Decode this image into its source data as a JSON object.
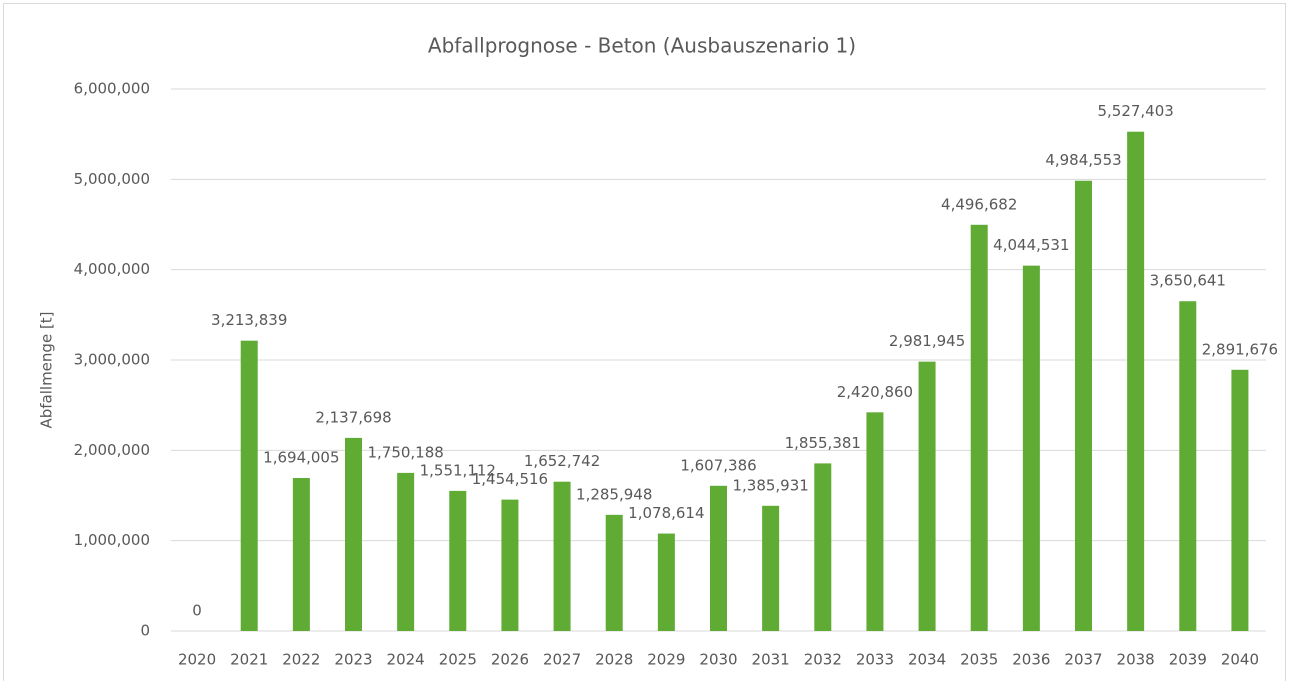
{
  "chart_data": {
    "type": "bar",
    "title": "Abfallprognose - Beton (Ausbauszenario 1)",
    "y_label": "Abfallmenge [t]",
    "categories": [
      "2020",
      "2021",
      "2022",
      "2023",
      "2024",
      "2025",
      "2026",
      "2027",
      "2028",
      "2029",
      "2030",
      "2031",
      "2032",
      "2033",
      "2034",
      "2035",
      "2036",
      "2037",
      "2038",
      "2039",
      "2040"
    ],
    "values": [
      0,
      3213839,
      1694005,
      2137698,
      1750188,
      1551112,
      1454516,
      1652742,
      1285948,
      1078614,
      1607386,
      1385931,
      1855381,
      2420860,
      2981945,
      4496682,
      4044531,
      4984553,
      5527403,
      3650641,
      2891676
    ],
    "value_labels": [
      "0",
      "3,213,839",
      "1,694,005",
      "2,137,698",
      "1,750,188",
      "1,551,112",
      "1,454,516",
      "1,652,742",
      "1,285,948",
      "1,078,614",
      "1,607,386",
      "1,385,931",
      "1,855,381",
      "2,420,860",
      "2,981,945",
      "4,496,682",
      "4,044,531",
      "4,984,553",
      "5,527,403",
      "3,650,641",
      "2,891,676"
    ],
    "color": "#5fab34",
    "ylim": [
      0,
      6000000
    ],
    "yticks": [
      0,
      {
        "value": 1000000,
        "label": "1,000,000"
      },
      {
        "value": 2000000,
        "label": "2,000,000"
      },
      {
        "value": 3000000,
        "label": "3,000,000"
      },
      {
        "value": 4000000,
        "label": "4,000,000"
      },
      {
        "value": 5000000,
        "label": "5,000,000"
      },
      {
        "value": 6000000,
        "label": "6,000,000"
      }
    ],
    "grid": true
  }
}
